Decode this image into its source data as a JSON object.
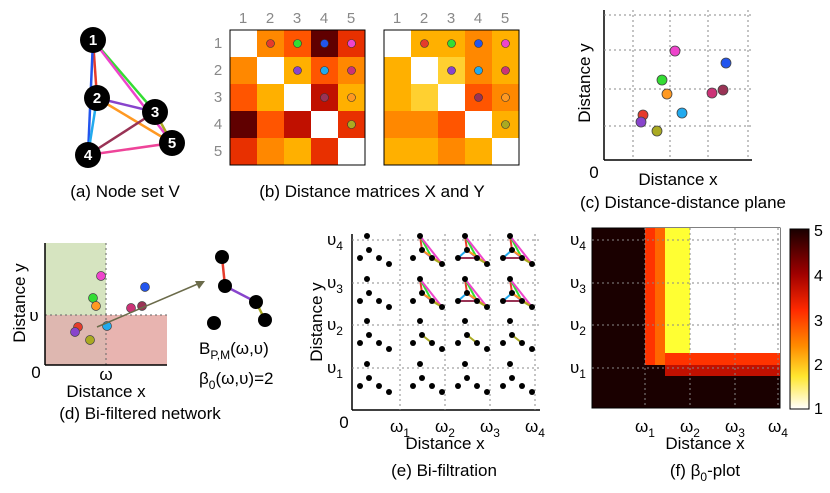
{
  "panels": {
    "a": {
      "caption": "(a) Node set V",
      "nodes": [
        "1",
        "2",
        "3",
        "4",
        "5"
      ]
    },
    "b": {
      "caption": "(b) Distance matrices X and Y",
      "col_ticks": [
        "1",
        "2",
        "3",
        "4",
        "5"
      ],
      "row_ticks": [
        "1",
        "2",
        "3",
        "4",
        "5"
      ]
    },
    "c": {
      "caption": "(c) Distance-distance plane",
      "xlabel": "Distance x",
      "ylabel": "Distance y",
      "origin": "0"
    },
    "d": {
      "caption": "(d) Bi-filtered network",
      "xlabel": "Distance x",
      "ylabel": "Distance y",
      "origin": "0",
      "omega": "ω",
      "upsilon": "υ",
      "bpm_main": "B",
      "bpm_sub": "P,M",
      "bpm_args": "(ω,υ)",
      "beta_main": "β",
      "beta_sub": "0",
      "beta_args": "(ω,υ)=2"
    },
    "e": {
      "caption": "(e) Bi-filtration",
      "xlabel": "Distance x",
      "ylabel": "Distance y",
      "origin": "0",
      "xticks": [
        {
          "m": "ω",
          "s": "1"
        },
        {
          "m": "ω",
          "s": "2"
        },
        {
          "m": "ω",
          "s": "3"
        },
        {
          "m": "ω",
          "s": "4"
        }
      ],
      "yticks": [
        {
          "m": "υ",
          "s": "1"
        },
        {
          "m": "υ",
          "s": "2"
        },
        {
          "m": "υ",
          "s": "3"
        },
        {
          "m": "υ",
          "s": "4"
        }
      ]
    },
    "f": {
      "caption_main": "(f) β",
      "caption_sub": "0",
      "caption_tail": "-plot",
      "xlabel": "Distance x",
      "xticks": [
        {
          "m": "ω",
          "s": "1"
        },
        {
          "m": "ω",
          "s": "2"
        },
        {
          "m": "ω",
          "s": "3"
        },
        {
          "m": "ω",
          "s": "4"
        }
      ],
      "yticks": [
        {
          "m": "υ",
          "s": "1"
        },
        {
          "m": "υ",
          "s": "2"
        },
        {
          "m": "υ",
          "s": "3"
        },
        {
          "m": "υ",
          "s": "4"
        }
      ],
      "colorbar_ticks": [
        "5",
        "4",
        "3",
        "2",
        "1"
      ]
    }
  },
  "colors": {
    "e12": "#e53b2b",
    "e13": "#33dd33",
    "e15": "#ee44cc",
    "e14": "#2255ee",
    "e23": "#8844cc",
    "e24": "#22aaee",
    "e25": "#cc3377",
    "e34": "#993355",
    "e35": "#ff9922",
    "e45": "#aaaa22",
    "matrix": [
      "#ffffff",
      "#fff080",
      "#ffd030",
      "#ffb000",
      "#ff8800",
      "#ff5500",
      "#e83000",
      "#c01000",
      "#900000",
      "#600000"
    ]
  }
}
